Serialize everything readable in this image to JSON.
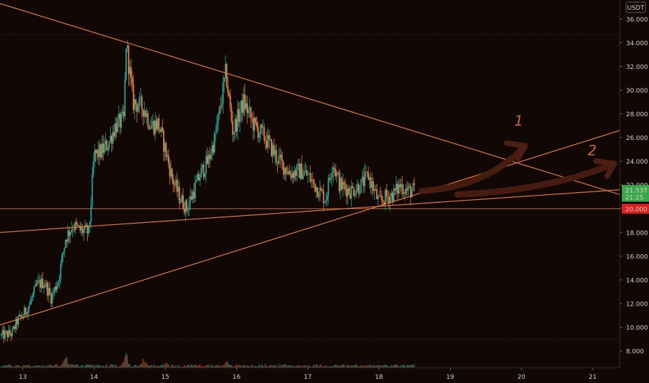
{
  "chart_data": {
    "type": "candlestick",
    "title": "",
    "currency": "USDT",
    "y_ticks": [
      8,
      10,
      12,
      14,
      16,
      18,
      20,
      22,
      24,
      26,
      28,
      30,
      32,
      34,
      36
    ],
    "y_tick_labels": [
      "8.000",
      "10.000",
      "12.000",
      "14.000",
      "16.000",
      "18.000",
      "20.000",
      "22.000",
      "24.000",
      "26.000",
      "28.000",
      "30.000",
      "32.000",
      "34.000",
      "36.000"
    ],
    "x_ticks": [
      13,
      14,
      15,
      16,
      17,
      18,
      19,
      20,
      21
    ],
    "x_tick_labels": [
      "13",
      "14",
      "15",
      "16",
      "17",
      "18",
      "19",
      "20",
      "21"
    ],
    "ylim": [
      6.6,
      37.6
    ],
    "xlim": [
      12.68,
      21.38
    ],
    "last_price": 21.537,
    "last_price_label": "21.537",
    "countdown_label": "21:25",
    "level_price": 20.0,
    "level_label": "20.000",
    "grid_lines": [
      9.0,
      34.7,
      20.0
    ],
    "price_path": [
      [
        12.7,
        9.3
      ],
      [
        12.85,
        9.5
      ],
      [
        12.92,
        10.5
      ],
      [
        13.0,
        11.0
      ],
      [
        13.1,
        12.0
      ],
      [
        13.2,
        13.6
      ],
      [
        13.3,
        13.8
      ],
      [
        13.4,
        12.5
      ],
      [
        13.5,
        14.0
      ],
      [
        13.6,
        17.5
      ],
      [
        13.7,
        18.6
      ],
      [
        13.8,
        18.2
      ],
      [
        13.93,
        18.0
      ],
      [
        14.0,
        24.5
      ],
      [
        14.1,
        24.8
      ],
      [
        14.2,
        25.5
      ],
      [
        14.3,
        27.0
      ],
      [
        14.42,
        27.5
      ],
      [
        14.45,
        34.0
      ],
      [
        14.55,
        29.0
      ],
      [
        14.7,
        28.5
      ],
      [
        14.8,
        27.0
      ],
      [
        14.9,
        27.2
      ],
      [
        15.0,
        25.0
      ],
      [
        15.1,
        22.5
      ],
      [
        15.2,
        21.0
      ],
      [
        15.3,
        20.0
      ],
      [
        15.4,
        21.5
      ],
      [
        15.5,
        23.0
      ],
      [
        15.6,
        24.0
      ],
      [
        15.7,
        26.0
      ],
      [
        15.8,
        29.5
      ],
      [
        15.85,
        31.5
      ],
      [
        15.95,
        26.5
      ],
      [
        16.1,
        29.0
      ],
      [
        16.25,
        27.0
      ],
      [
        16.4,
        26.0
      ],
      [
        16.5,
        25.0
      ],
      [
        16.6,
        24.0
      ],
      [
        16.75,
        23.0
      ],
      [
        16.9,
        23.2
      ],
      [
        17.0,
        22.8
      ],
      [
        17.1,
        22.0
      ],
      [
        17.25,
        20.8
      ],
      [
        17.35,
        24.0
      ],
      [
        17.45,
        22.0
      ],
      [
        17.6,
        21.5
      ],
      [
        17.75,
        22.0
      ],
      [
        17.85,
        22.8
      ],
      [
        18.0,
        20.5
      ],
      [
        18.1,
        21.0
      ],
      [
        18.2,
        21.2
      ],
      [
        18.3,
        22.0
      ],
      [
        18.4,
        21.5
      ],
      [
        18.5,
        21.537
      ]
    ],
    "volume_bars": {
      "scale_max": 8.0,
      "peaks": [
        [
          13.6,
          7.3
        ],
        [
          14.45,
          7.6
        ],
        [
          14.7,
          5.3
        ],
        [
          15.0,
          3.5
        ],
        [
          15.85,
          4.0
        ]
      ],
      "base_level": 1.3
    },
    "trendlines": [
      {
        "name": "resistance",
        "from": [
          12.68,
          37.3
        ],
        "to": [
          21.38,
          21.2
        ]
      },
      {
        "name": "support-rising",
        "from": [
          12.68,
          10.2
        ],
        "to": [
          21.38,
          26.6
        ]
      },
      {
        "name": "support-flat",
        "from": [
          12.68,
          18.0
        ],
        "to": [
          21.38,
          21.6
        ]
      }
    ],
    "annotations": [
      {
        "label": "1",
        "at": [
          19.9,
          27.0
        ],
        "arrow_from": [
          18.6,
          21.5
        ],
        "arrow_to": [
          20.05,
          25.3
        ]
      },
      {
        "label": "2",
        "at": [
          20.93,
          24.5
        ],
        "arrow_from": [
          19.1,
          21.2
        ],
        "arrow_to": [
          21.3,
          23.8
        ]
      }
    ],
    "colors": {
      "background": "#110705",
      "up": "#26a69a",
      "down": "#ef7d3a",
      "trendline": "#e87a3a",
      "annotation": "#c76b2d",
      "arrow": "#4a1e12",
      "last_price_bg": "#3aa84a",
      "level_bg": "#e02020",
      "grid": "#3a2a22"
    },
    "legend": "none",
    "grid": "off"
  }
}
